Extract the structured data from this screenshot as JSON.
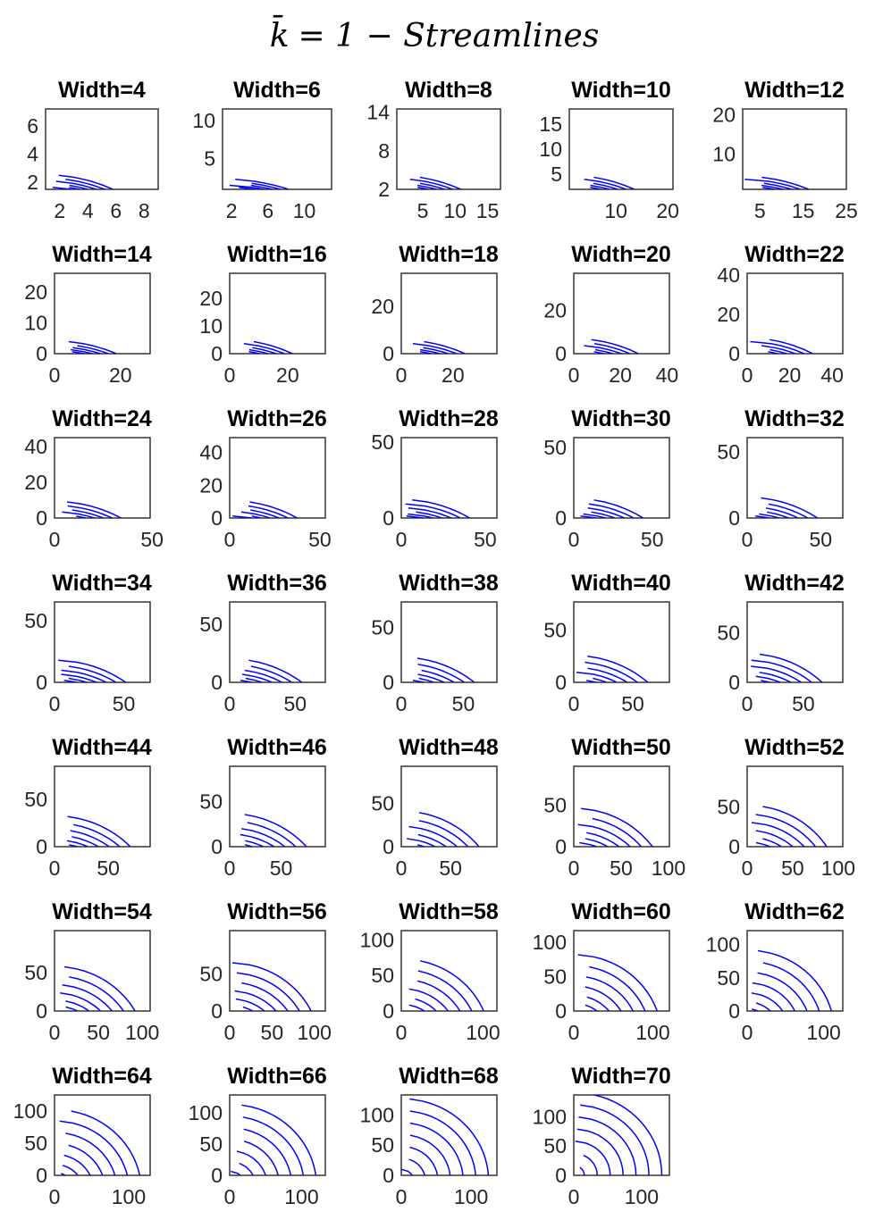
{
  "chart_data": {
    "type": "line",
    "title": "k̄ = 1 − Streamlines",
    "title_symbol": "k̄",
    "title_rest": "= 1 − Streamlines",
    "line_color": "#0000ff",
    "panels": [
      {
        "title": "Width=4",
        "width": 4,
        "xlim": [
          1,
          9
        ],
        "ylim": [
          1.5,
          7.2
        ],
        "xticks": [
          2,
          4,
          6,
          8
        ],
        "yticks": [
          2,
          4,
          6
        ]
      },
      {
        "title": "Width=6",
        "width": 6,
        "xlim": [
          1,
          13
        ],
        "ylim": [
          1,
          11.5
        ],
        "xticks": [
          2,
          6,
          10
        ],
        "yticks": [
          5,
          10
        ]
      },
      {
        "title": "Width=8",
        "width": 8,
        "xlim": [
          1,
          17
        ],
        "ylim": [
          2,
          14.5
        ],
        "xticks": [
          5,
          10,
          15
        ],
        "yticks": [
          2,
          8,
          14
        ]
      },
      {
        "title": "Width=10",
        "width": 10,
        "xlim": [
          1,
          21
        ],
        "ylim": [
          2,
          18
        ],
        "xticks": [
          10,
          20
        ],
        "yticks": [
          5,
          10,
          15
        ]
      },
      {
        "title": "Width=12",
        "width": 12,
        "xlim": [
          1,
          25
        ],
        "ylim": [
          1,
          21.5
        ],
        "xticks": [
          5,
          15,
          25
        ],
        "yticks": [
          10,
          20
        ]
      },
      {
        "title": "Width=14",
        "width": 14,
        "xlim": [
          0,
          29
        ],
        "ylim": [
          0,
          26
        ],
        "xticks": [
          0,
          20
        ],
        "yticks": [
          0,
          10,
          20
        ]
      },
      {
        "title": "Width=16",
        "width": 16,
        "xlim": [
          0,
          33
        ],
        "ylim": [
          0,
          29
        ],
        "xticks": [
          0,
          20
        ],
        "yticks": [
          0,
          10,
          20
        ]
      },
      {
        "title": "Width=18",
        "width": 18,
        "xlim": [
          0,
          37
        ],
        "ylim": [
          0,
          34
        ],
        "xticks": [
          0,
          20
        ],
        "yticks": [
          0,
          20
        ]
      },
      {
        "title": "Width=20",
        "width": 20,
        "xlim": [
          0,
          41
        ],
        "ylim": [
          0,
          37
        ],
        "xticks": [
          0,
          20,
          40
        ],
        "yticks": [
          0,
          20
        ]
      },
      {
        "title": "Width=22",
        "width": 22,
        "xlim": [
          0,
          45
        ],
        "ylim": [
          0,
          41
        ],
        "xticks": [
          0,
          20,
          40
        ],
        "yticks": [
          0,
          20,
          40
        ]
      },
      {
        "title": "Width=24",
        "width": 24,
        "xlim": [
          0,
          49
        ],
        "ylim": [
          0,
          45
        ],
        "xticks": [
          0,
          50
        ],
        "yticks": [
          0,
          20,
          40
        ]
      },
      {
        "title": "Width=26",
        "width": 26,
        "xlim": [
          0,
          53
        ],
        "ylim": [
          0,
          49
        ],
        "xticks": [
          0,
          50
        ],
        "yticks": [
          0,
          20,
          40
        ]
      },
      {
        "title": "Width=28",
        "width": 28,
        "xlim": [
          0,
          57
        ],
        "ylim": [
          0,
          53
        ],
        "xticks": [
          0,
          50
        ],
        "yticks": [
          0,
          50
        ]
      },
      {
        "title": "Width=30",
        "width": 30,
        "xlim": [
          0,
          61
        ],
        "ylim": [
          0,
          57
        ],
        "xticks": [
          0,
          50
        ],
        "yticks": [
          0,
          50
        ]
      },
      {
        "title": "Width=32",
        "width": 32,
        "xlim": [
          0,
          65
        ],
        "ylim": [
          0,
          61
        ],
        "xticks": [
          0,
          50
        ],
        "yticks": [
          0,
          50
        ]
      },
      {
        "title": "Width=34",
        "width": 34,
        "xlim": [
          0,
          69
        ],
        "ylim": [
          0,
          65
        ],
        "xticks": [
          0,
          50
        ],
        "yticks": [
          0,
          50
        ]
      },
      {
        "title": "Width=36",
        "width": 36,
        "xlim": [
          0,
          73
        ],
        "ylim": [
          0,
          69
        ],
        "xticks": [
          0,
          50
        ],
        "yticks": [
          0,
          50
        ]
      },
      {
        "title": "Width=38",
        "width": 38,
        "xlim": [
          0,
          77
        ],
        "ylim": [
          0,
          73
        ],
        "xticks": [
          0,
          50
        ],
        "yticks": [
          0,
          50
        ]
      },
      {
        "title": "Width=40",
        "width": 40,
        "xlim": [
          0,
          81
        ],
        "ylim": [
          0,
          77
        ],
        "xticks": [
          0,
          50
        ],
        "yticks": [
          0,
          50
        ]
      },
      {
        "title": "Width=42",
        "width": 42,
        "xlim": [
          0,
          85
        ],
        "ylim": [
          0,
          81
        ],
        "xticks": [
          0,
          50
        ],
        "yticks": [
          0,
          50
        ]
      },
      {
        "title": "Width=44",
        "width": 44,
        "xlim": [
          0,
          89
        ],
        "ylim": [
          0,
          85
        ],
        "xticks": [
          0,
          50
        ],
        "yticks": [
          0,
          50
        ]
      },
      {
        "title": "Width=46",
        "width": 46,
        "xlim": [
          0,
          93
        ],
        "ylim": [
          0,
          89
        ],
        "xticks": [
          0,
          50
        ],
        "yticks": [
          0,
          50
        ]
      },
      {
        "title": "Width=48",
        "width": 48,
        "xlim": [
          0,
          97
        ],
        "ylim": [
          0,
          93
        ],
        "xticks": [
          0,
          50
        ],
        "yticks": [
          0,
          50
        ]
      },
      {
        "title": "Width=50",
        "width": 50,
        "xlim": [
          0,
          101
        ],
        "ylim": [
          0,
          97
        ],
        "xticks": [
          0,
          50,
          100
        ],
        "yticks": [
          0,
          50
        ]
      },
      {
        "title": "Width=52",
        "width": 52,
        "xlim": [
          0,
          105
        ],
        "ylim": [
          0,
          101
        ],
        "xticks": [
          0,
          50,
          100
        ],
        "yticks": [
          0,
          50
        ]
      },
      {
        "title": "Width=54",
        "width": 54,
        "xlim": [
          0,
          109
        ],
        "ylim": [
          0,
          105
        ],
        "xticks": [
          0,
          50,
          100
        ],
        "yticks": [
          0,
          50
        ]
      },
      {
        "title": "Width=56",
        "width": 56,
        "xlim": [
          0,
          113
        ],
        "ylim": [
          0,
          109
        ],
        "xticks": [
          0,
          50,
          100
        ],
        "yticks": [
          0,
          50
        ]
      },
      {
        "title": "Width=58",
        "width": 58,
        "xlim": [
          0,
          117
        ],
        "ylim": [
          0,
          113
        ],
        "xticks": [
          0,
          100
        ],
        "yticks": [
          0,
          50,
          100
        ]
      },
      {
        "title": "Width=60",
        "width": 60,
        "xlim": [
          0,
          121
        ],
        "ylim": [
          0,
          117
        ],
        "xticks": [
          0,
          100
        ],
        "yticks": [
          0,
          50,
          100
        ]
      },
      {
        "title": "Width=62",
        "width": 62,
        "xlim": [
          0,
          125
        ],
        "ylim": [
          0,
          121
        ],
        "xticks": [
          0,
          100
        ],
        "yticks": [
          0,
          50,
          100
        ]
      },
      {
        "title": "Width=64",
        "width": 64,
        "xlim": [
          0,
          129
        ],
        "ylim": [
          0,
          125
        ],
        "xticks": [
          0,
          100
        ],
        "yticks": [
          0,
          50,
          100
        ]
      },
      {
        "title": "Width=66",
        "width": 66,
        "xlim": [
          0,
          133
        ],
        "ylim": [
          0,
          129
        ],
        "xticks": [
          0,
          100
        ],
        "yticks": [
          0,
          50,
          100
        ]
      },
      {
        "title": "Width=68",
        "width": 68,
        "xlim": [
          0,
          137
        ],
        "ylim": [
          0,
          133
        ],
        "xticks": [
          0,
          100
        ],
        "yticks": [
          0,
          50,
          100
        ]
      },
      {
        "title": "Width=70",
        "width": 70,
        "xlim": [
          0,
          141
        ],
        "ylim": [
          0,
          137
        ],
        "xticks": [
          0,
          100
        ],
        "yticks": [
          0,
          50,
          100
        ]
      }
    ]
  }
}
